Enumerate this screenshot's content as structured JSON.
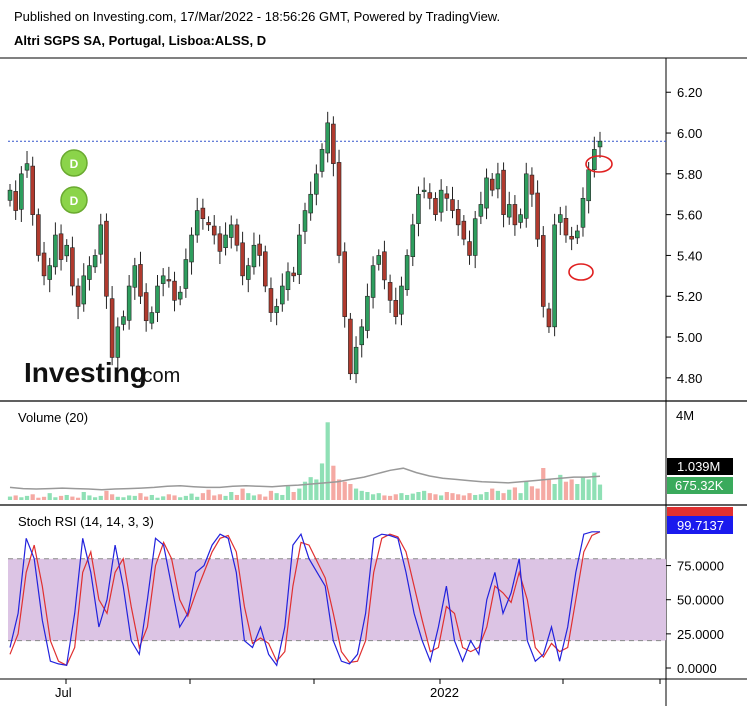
{
  "header": {
    "published": "Published on Investing.com, 17/Mar/2022 - 18:56:26 GMT, Powered by TradingView.",
    "symbol": "Altri SGPS SA, Portugal, Lisboa:ALSS, D"
  },
  "watermark": {
    "brand": "Investing",
    "suffix": ".com"
  },
  "colors": {
    "up": "#2e9e5e",
    "down": "#b03a2e",
    "reference": "#3355cc",
    "annotation": "#e02020",
    "k_line": "#2222dd",
    "d_line": "#e03030",
    "rsi_band": "#dcc4e4",
    "vol_up": "#8fe0b5",
    "vol_down": "#f5a9a3"
  },
  "chart_data": [
    {
      "type": "candlestick",
      "title": "Altri SGPS SA, Portugal, Lisboa:ALSS, D",
      "y_ticks": [
        "6.20",
        "6.00",
        "5.80",
        "5.60",
        "5.40",
        "5.20",
        "5.00",
        "4.80"
      ],
      "ylim": [
        4.76,
        6.26
      ],
      "reference_line": 5.96,
      "events": [
        {
          "label": "D",
          "series": "dividend"
        },
        {
          "label": "D",
          "series": "dividend"
        }
      ],
      "closes": [
        5.72,
        5.62,
        5.8,
        5.85,
        5.6,
        5.4,
        5.3,
        5.35,
        5.5,
        5.38,
        5.45,
        5.25,
        5.15,
        5.3,
        5.35,
        5.4,
        5.55,
        5.2,
        4.9,
        5.05,
        5.1,
        5.25,
        5.35,
        5.2,
        5.08,
        5.12,
        5.25,
        5.3,
        5.28,
        5.18,
        5.22,
        5.38,
        5.5,
        5.62,
        5.58,
        5.55,
        5.5,
        5.42,
        5.5,
        5.55,
        5.45,
        5.3,
        5.35,
        5.45,
        5.4,
        5.25,
        5.12,
        5.15,
        5.25,
        5.32,
        5.3,
        5.5,
        5.62,
        5.7,
        5.8,
        5.92,
        6.05,
        5.85,
        5.4,
        5.1,
        4.82,
        4.95,
        5.05,
        5.2,
        5.35,
        5.4,
        5.28,
        5.18,
        5.1,
        5.25,
        5.4,
        5.55,
        5.7,
        5.72,
        5.68,
        5.6,
        5.72,
        5.68,
        5.62,
        5.55,
        5.48,
        5.4,
        5.58,
        5.65,
        5.78,
        5.72,
        5.8,
        5.6,
        5.65,
        5.55,
        5.6,
        5.8,
        5.7,
        5.48,
        5.15,
        5.05,
        5.55,
        5.6,
        5.5,
        5.48,
        5.52,
        5.68,
        5.82,
        5.92,
        5.96
      ],
      "x_ticks": [
        "Jul",
        "2022"
      ]
    },
    {
      "type": "bar",
      "title": "Volume (20)",
      "y_ticks": [
        "4M"
      ],
      "last_value_labels": [
        "1.039M",
        "675.32K"
      ],
      "values": [
        0.15,
        0.2,
        0.12,
        0.18,
        0.25,
        0.1,
        0.14,
        0.3,
        0.12,
        0.18,
        0.22,
        0.15,
        0.1,
        0.35,
        0.2,
        0.12,
        0.18,
        0.4,
        0.25,
        0.14,
        0.12,
        0.2,
        0.18,
        0.3,
        0.15,
        0.22,
        0.1,
        0.16,
        0.25,
        0.2,
        0.12,
        0.18,
        0.28,
        0.14,
        0.3,
        0.45,
        0.2,
        0.25,
        0.18,
        0.35,
        0.22,
        0.5,
        0.3,
        0.2,
        0.25,
        0.15,
        0.4,
        0.3,
        0.22,
        0.6,
        0.35,
        0.5,
        0.8,
        1.0,
        0.9,
        1.6,
        3.4,
        1.5,
        0.9,
        0.8,
        0.7,
        0.5,
        0.4,
        0.35,
        0.25,
        0.3,
        0.2,
        0.18,
        0.25,
        0.3,
        0.22,
        0.28,
        0.35,
        0.4,
        0.3,
        0.25,
        0.2,
        0.35,
        0.3,
        0.25,
        0.2,
        0.3,
        0.22,
        0.25,
        0.35,
        0.5,
        0.4,
        0.3,
        0.45,
        0.55,
        0.3,
        0.8,
        0.6,
        0.5,
        1.4,
        0.9,
        0.7,
        1.1,
        0.8,
        0.9,
        0.7,
        1.0,
        0.9,
        1.2,
        0.675
      ],
      "ma20": [
        0.55,
        0.5,
        0.48,
        0.5,
        0.52,
        0.5,
        0.48,
        0.45,
        0.48,
        0.5,
        0.52,
        0.55,
        0.6,
        0.62,
        0.58,
        0.55,
        0.55,
        0.6,
        0.62,
        0.6,
        0.58,
        0.62,
        0.65,
        0.7,
        0.75,
        0.8,
        0.9,
        1.0,
        1.15,
        1.3,
        1.39,
        1.2,
        1.05,
        0.95,
        0.9,
        0.85,
        0.8,
        0.78,
        0.75,
        0.8,
        0.85,
        0.9,
        0.95,
        1.0,
        1.0,
        1.039
      ]
    },
    {
      "type": "line",
      "title": "Stoch RSI (14, 14, 3, 3)",
      "y_ticks": [
        "75.0000",
        "50.0000",
        "25.0000",
        "0.0000"
      ],
      "last_value_labels": [
        "99.7137",
        "99.7137"
      ],
      "band": [
        20,
        80
      ],
      "series": [
        {
          "values": [
            15,
            40,
            95,
            80,
            35,
            5,
            3,
            2,
            40,
            95,
            70,
            30,
            50,
            90,
            60,
            20,
            10,
            50,
            95,
            90,
            60,
            30,
            40,
            70,
            75,
            90,
            98,
            95,
            70,
            20,
            15,
            30,
            10,
            2,
            30,
            90,
            98,
            80,
            70,
            60,
            20,
            5,
            3,
            10,
            40,
            95,
            98,
            97,
            95,
            70,
            40,
            20,
            5,
            30,
            60,
            20,
            5,
            20,
            10,
            50,
            70,
            40,
            55,
            80,
            20,
            5,
            10,
            30,
            5,
            30,
            70,
            98,
            99.71,
            99.71
          ]
        },
        {
          "values": [
            10,
            25,
            70,
            90,
            60,
            20,
            5,
            2,
            15,
            70,
            85,
            50,
            40,
            70,
            80,
            45,
            15,
            30,
            75,
            92,
            80,
            50,
            38,
            55,
            70,
            85,
            95,
            97,
            85,
            45,
            18,
            22,
            18,
            5,
            12,
            60,
            92,
            90,
            78,
            66,
            40,
            12,
            4,
            5,
            20,
            70,
            95,
            98,
            96,
            85,
            60,
            35,
            12,
            15,
            45,
            40,
            15,
            12,
            15,
            30,
            60,
            55,
            48,
            70,
            50,
            15,
            8,
            18,
            12,
            15,
            50,
            85,
            97,
            99.71
          ]
        }
      ]
    }
  ]
}
